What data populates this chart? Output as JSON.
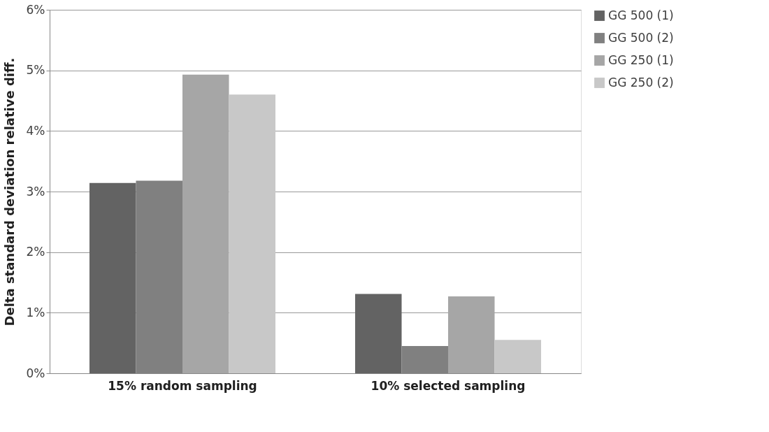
{
  "chart_data": {
    "type": "bar",
    "ylabel": "Delta standard deviation relative  diff.",
    "categories": [
      "15%  random sampling",
      "10% selected sampling"
    ],
    "series": [
      {
        "name": "GG 500 (1)",
        "color": "#636363",
        "values": [
          3.14,
          1.31
        ]
      },
      {
        "name": "GG 500 (2)",
        "color": "#808080",
        "values": [
          3.18,
          0.45
        ]
      },
      {
        "name": "GG 250 (1)",
        "color": "#a6a6a6",
        "values": [
          4.93,
          1.27
        ]
      },
      {
        "name": "GG 250 (2)",
        "color": "#c8c8c8",
        "values": [
          4.6,
          0.55
        ]
      }
    ],
    "ylim": [
      0,
      6
    ],
    "yticks": [
      {
        "value": 0,
        "label": "0%"
      },
      {
        "value": 1,
        "label": "1%"
      },
      {
        "value": 2,
        "label": "2%"
      },
      {
        "value": 3,
        "label": "3%"
      },
      {
        "value": 4,
        "label": "4%"
      },
      {
        "value": 5,
        "label": "5%"
      },
      {
        "value": 6,
        "label": "6%"
      }
    ],
    "grid": "y",
    "legend": "right"
  }
}
